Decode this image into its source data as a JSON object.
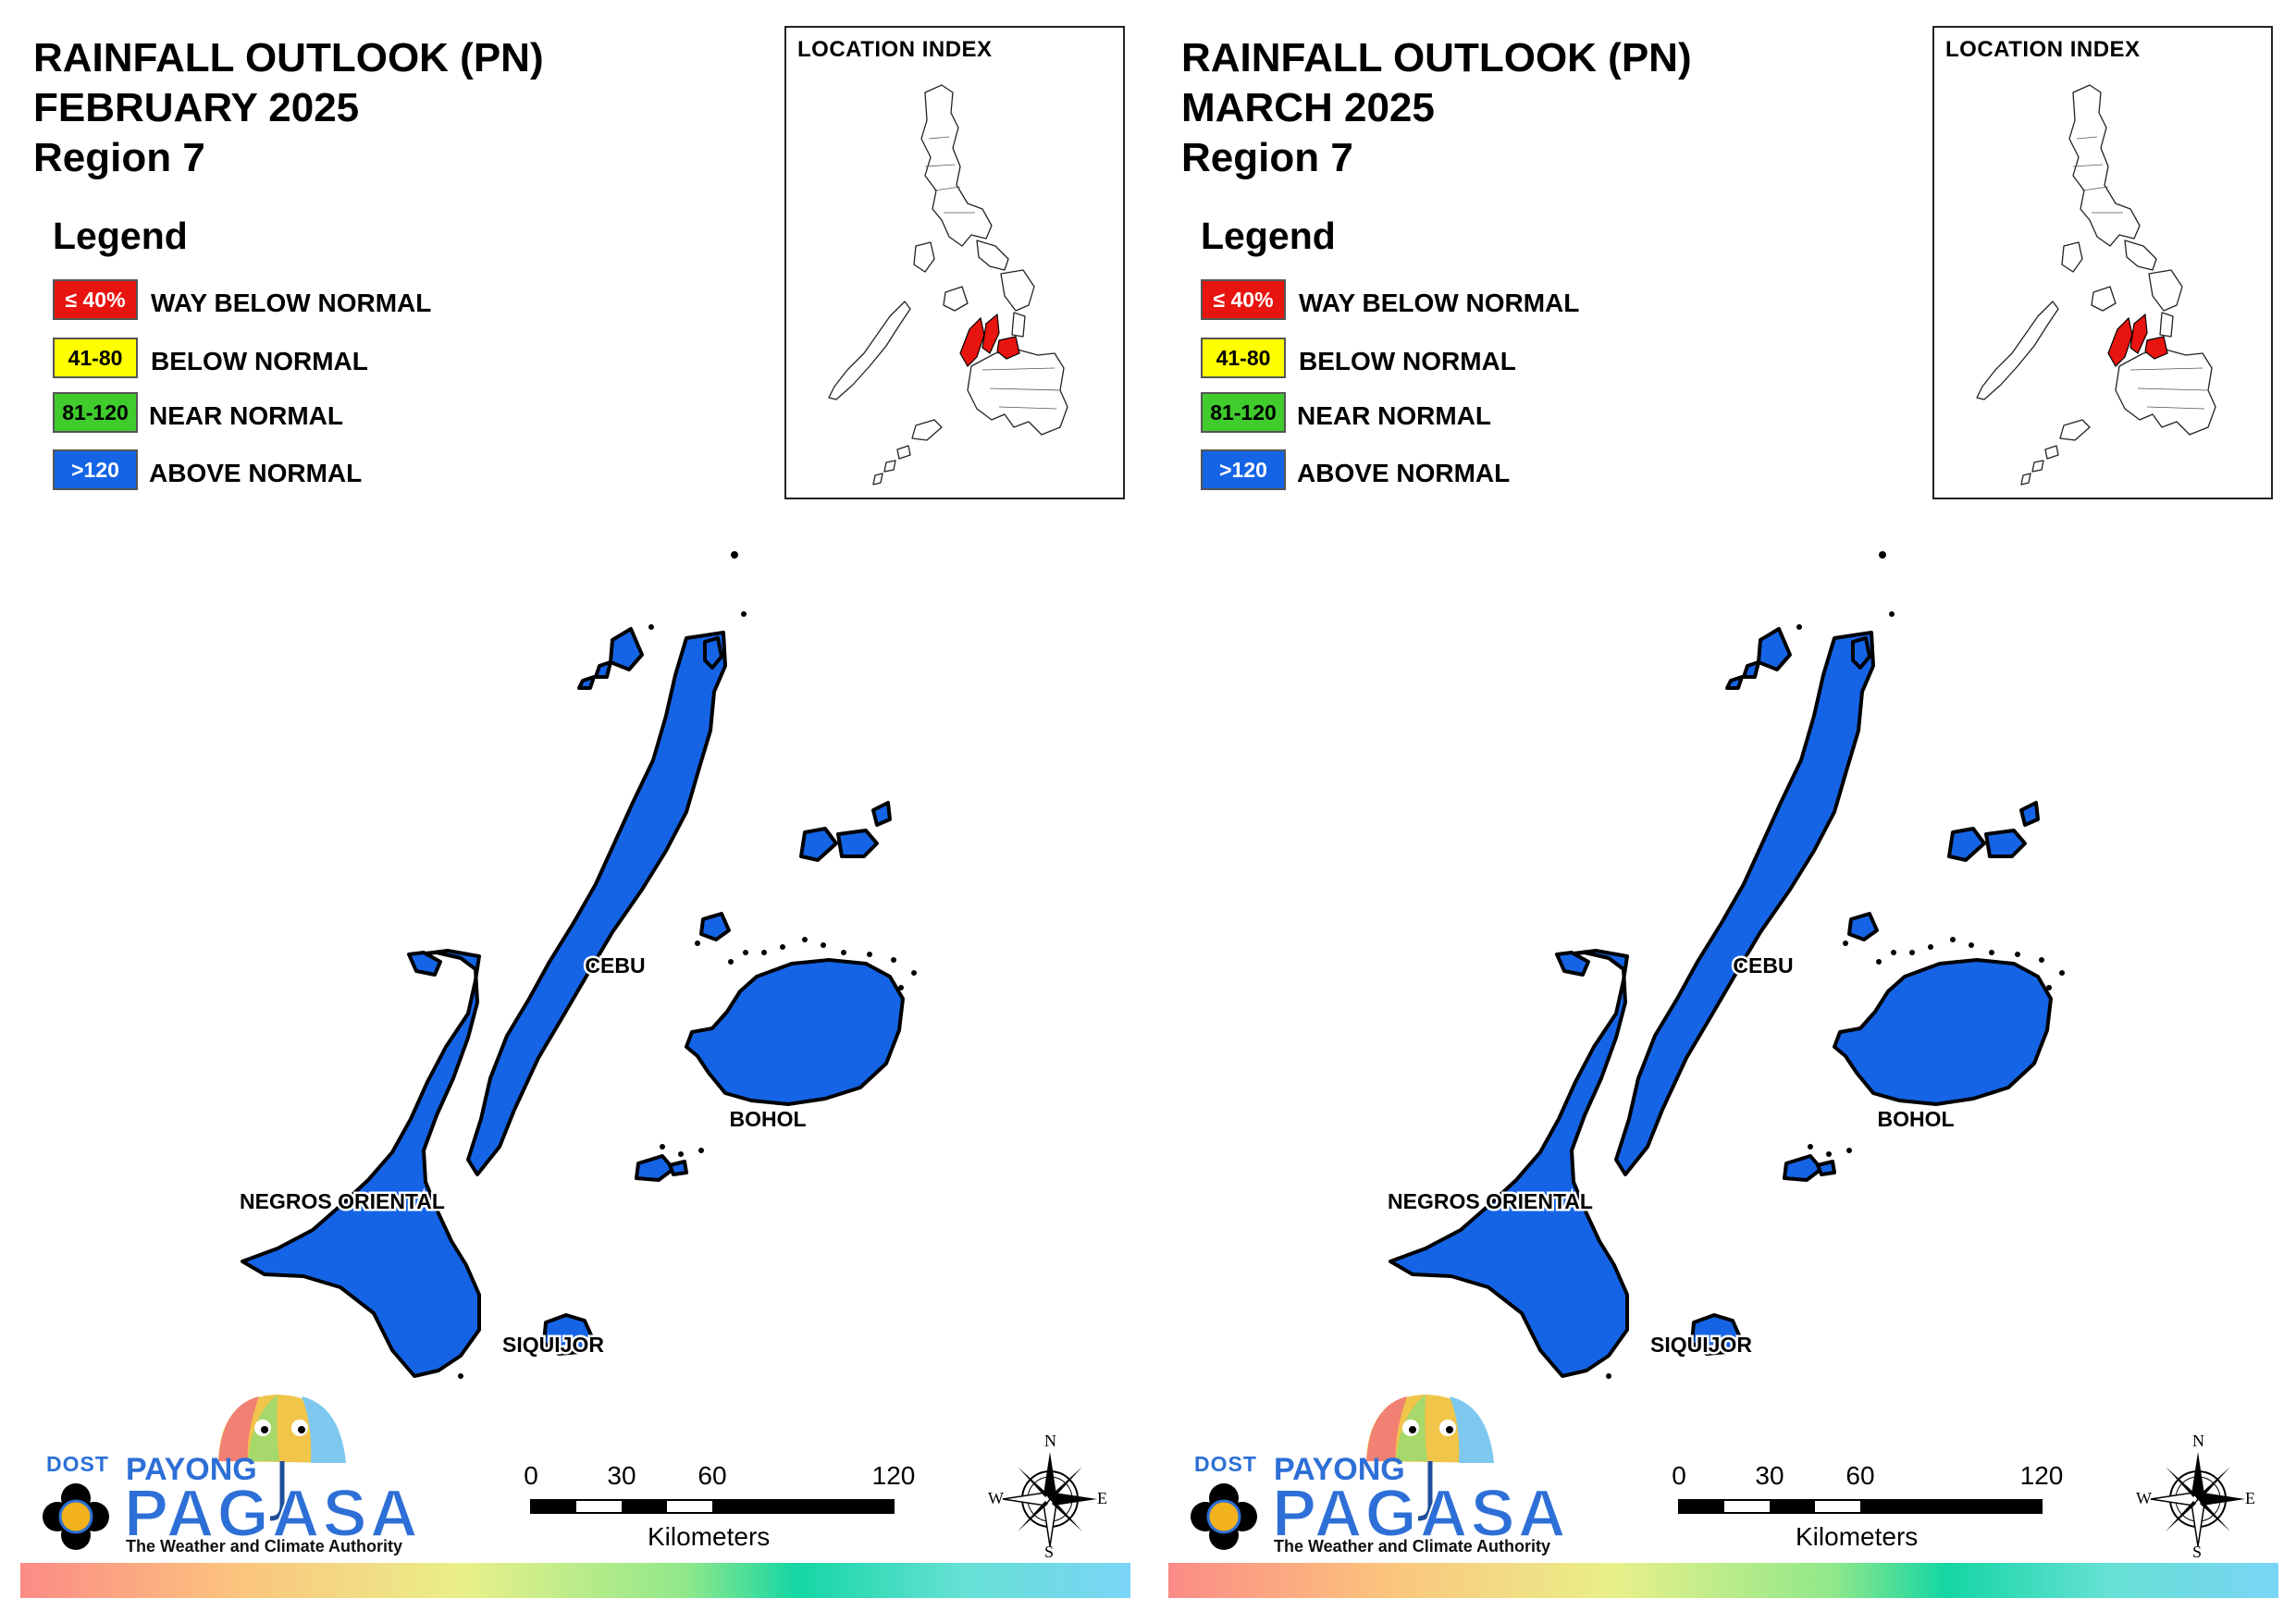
{
  "panels": [
    {
      "title_line1": "RAINFALL OUTLOOK (PN)",
      "title_line2": "FEBRUARY 2025",
      "title_line3": "Region 7",
      "legend_heading": "Legend",
      "legend": [
        {
          "swatch": "≤ 40%",
          "label": "WAY BELOW NORMAL",
          "color": "#e8140f"
        },
        {
          "swatch": "41-80",
          "label": "BELOW NORMAL",
          "color": "#ffff00"
        },
        {
          "swatch": "81-120",
          "label": "NEAR NORMAL",
          "color": "#3fcc2c"
        },
        {
          "swatch": ">120",
          "label": "ABOVE NORMAL",
          "color": "#1564e6"
        }
      ],
      "index_title": "LOCATION INDEX",
      "provinces": [
        {
          "name": "CEBU",
          "category": "ABOVE NORMAL"
        },
        {
          "name": "BOHOL",
          "category": "ABOVE NORMAL"
        },
        {
          "name": "NEGROS ORIENTAL",
          "category": "ABOVE NORMAL"
        },
        {
          "name": "SIQUIJOR",
          "category": "ABOVE NORMAL"
        }
      ],
      "scale_ticks": [
        "0",
        "30",
        "60",
        "120"
      ],
      "scale_units": "Kilometers",
      "compass": {
        "n": "N",
        "e": "E",
        "s": "S",
        "w": "W"
      },
      "logo": {
        "dost": "DOST",
        "payong": "PAYONG",
        "pagasa": "PAGASA",
        "tagline": "The Weather and Climate Authority"
      }
    },
    {
      "title_line1": "RAINFALL OUTLOOK (PN)",
      "title_line2": "MARCH 2025",
      "title_line3": "Region 7",
      "legend_heading": "Legend",
      "legend": [
        {
          "swatch": "≤ 40%",
          "label": "WAY BELOW NORMAL",
          "color": "#e8140f"
        },
        {
          "swatch": "41-80",
          "label": "BELOW NORMAL",
          "color": "#ffff00"
        },
        {
          "swatch": "81-120",
          "label": "NEAR NORMAL",
          "color": "#3fcc2c"
        },
        {
          "swatch": ">120",
          "label": "ABOVE NORMAL",
          "color": "#1564e6"
        }
      ],
      "index_title": "LOCATION INDEX",
      "provinces": [
        {
          "name": "CEBU",
          "category": "ABOVE NORMAL"
        },
        {
          "name": "BOHOL",
          "category": "ABOVE NORMAL"
        },
        {
          "name": "NEGROS ORIENTAL",
          "category": "ABOVE NORMAL"
        },
        {
          "name": "SIQUIJOR",
          "category": "ABOVE NORMAL"
        }
      ],
      "scale_ticks": [
        "0",
        "30",
        "60",
        "120"
      ],
      "scale_units": "Kilometers",
      "compass": {
        "n": "N",
        "e": "E",
        "s": "S",
        "w": "W"
      },
      "logo": {
        "dost": "DOST",
        "payong": "PAYONG",
        "pagasa": "PAGASA",
        "tagline": "The Weather and Climate Authority"
      }
    }
  ],
  "colors": {
    "province_fill": "#1564e6",
    "highlight": "#e8140f",
    "outline": "#000000"
  }
}
